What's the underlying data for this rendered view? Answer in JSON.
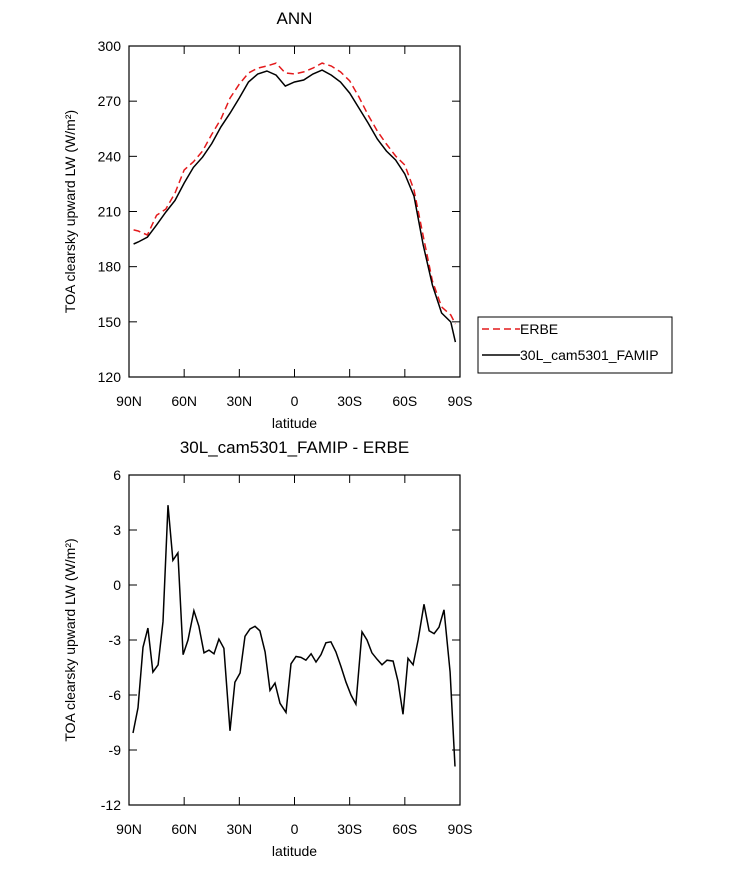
{
  "chart_data": [
    {
      "type": "line",
      "title": "ANN",
      "xlabel": "latitude",
      "ylabel": "TOA clearsky upward LW (W/m²)",
      "x": [
        87.5,
        85,
        80,
        75,
        70,
        65,
        60,
        55,
        50,
        45,
        40,
        35,
        30,
        25,
        20,
        15,
        10,
        5,
        0,
        -5,
        -10,
        -15,
        -20,
        -25,
        -30,
        -35,
        -40,
        -45,
        -50,
        -55,
        -60,
        -65,
        -70,
        -75,
        -80,
        -85,
        -87.5
      ],
      "series": [
        {
          "name": "ERBE",
          "color": "#e41a1c",
          "dash": true,
          "values": [
            200,
            199.4,
            197.2,
            208,
            211.3,
            220,
            232.6,
            237,
            242.9,
            252,
            260.3,
            271.7,
            279.3,
            285.3,
            288,
            289.1,
            290.7,
            285.3,
            284.8,
            285.9,
            288,
            290.7,
            289.1,
            285.9,
            281,
            272.3,
            262.5,
            253.8,
            246.7,
            240.2,
            235.3,
            221.7,
            196.7,
            172.2,
            158.1,
            153.7,
            148.8
          ]
        },
        {
          "name": "30L_cam5301_FAMIP",
          "color": "#000000",
          "dash": false,
          "values": [
            192.3,
            193.4,
            196,
            202.7,
            209.7,
            216,
            225.5,
            234,
            239.6,
            247,
            256,
            263.5,
            271.7,
            280.4,
            284.8,
            286.4,
            284.2,
            278.2,
            280.4,
            281.5,
            284.8,
            286.9,
            284.2,
            280.4,
            274.4,
            266.3,
            258.1,
            249.4,
            242.9,
            238,
            230.4,
            218.4,
            191.8,
            170,
            154.8,
            149.9,
            139
          ]
        }
      ],
      "xlim": [
        90,
        -90
      ],
      "xticks": [
        {
          "value": 90,
          "label": "90N"
        },
        {
          "value": 60,
          "label": "60N"
        },
        {
          "value": 30,
          "label": "30N"
        },
        0,
        {
          "value": -30,
          "label": "30S"
        },
        {
          "value": -60,
          "label": "60S"
        },
        {
          "value": -90,
          "label": "90S"
        }
      ],
      "ylim": [
        120,
        300
      ],
      "yticks": [
        120,
        150,
        180,
        210,
        240,
        270,
        300
      ],
      "legend": "right"
    },
    {
      "type": "line",
      "title": "30L_cam5301_FAMIP - ERBE",
      "xlabel": "latitude",
      "ylabel": "TOA clearsky upward LW (W/m²)",
      "x": [
        87.8,
        85.1,
        82.4,
        79.7,
        77,
        74.2,
        71.5,
        68.8,
        66.1,
        63.4,
        60.6,
        57.9,
        54.7,
        52,
        49.2,
        46.5,
        43.8,
        41.1,
        38.4,
        35.1,
        32.4,
        29.6,
        26.9,
        24.2,
        21.5,
        18.8,
        16,
        13.3,
        10.6,
        7.9,
        4.6,
        1.9,
        -0.8,
        -3.5,
        -6.2,
        -9,
        -11.7,
        -14.4,
        -17.1,
        -19.8,
        -22.5,
        -25.3,
        -28,
        -30.7,
        -33.4,
        -36.7,
        -39.4,
        -42.1,
        -44.9,
        -47.6,
        -50.3,
        -53.6,
        -56.3,
        -59,
        -61.7,
        -64.5,
        -67.2,
        -70.4,
        -73.2,
        -75.9,
        -78.6,
        -81.3,
        -84.6,
        -87.3
      ],
      "series": [
        {
          "color": "#000000",
          "dash": false,
          "values": [
            -8.07,
            -6.7,
            -3.4,
            -2.35,
            -4.75,
            -4.35,
            -2,
            4.35,
            1.35,
            1.75,
            -3.8,
            -3,
            -1.4,
            -2.25,
            -3.7,
            -3.55,
            -3.75,
            -2.95,
            -3.45,
            -7.95,
            -5.3,
            -4.8,
            -2.8,
            -2.4,
            -2.25,
            -2.5,
            -3.65,
            -5.75,
            -5.35,
            -6.45,
            -6.95,
            -4.3,
            -3.9,
            -3.95,
            -4.1,
            -3.75,
            -4.2,
            -3.8,
            -3.15,
            -3.1,
            -3.65,
            -4.45,
            -5.3,
            -6,
            -6.5,
            -2.55,
            -3,
            -3.7,
            -4.05,
            -4.35,
            -4.1,
            -4.15,
            -5.25,
            -7.05,
            -4,
            -4.35,
            -3,
            -1.05,
            -2.5,
            -2.65,
            -2.3,
            -1.35,
            -4.75,
            -9.9
          ]
        }
      ],
      "xlim": [
        90,
        -90
      ],
      "xticks": [
        {
          "value": 90,
          "label": "90N"
        },
        {
          "value": 60,
          "label": "60N"
        },
        {
          "value": 30,
          "label": "30N"
        },
        0,
        {
          "value": -30,
          "label": "30S"
        },
        {
          "value": -60,
          "label": "60S"
        },
        {
          "value": -90,
          "label": "90S"
        }
      ],
      "ylim": [
        -12,
        6
      ],
      "yticks": [
        -12,
        -9,
        -6,
        -3,
        0,
        3,
        6
      ]
    }
  ]
}
